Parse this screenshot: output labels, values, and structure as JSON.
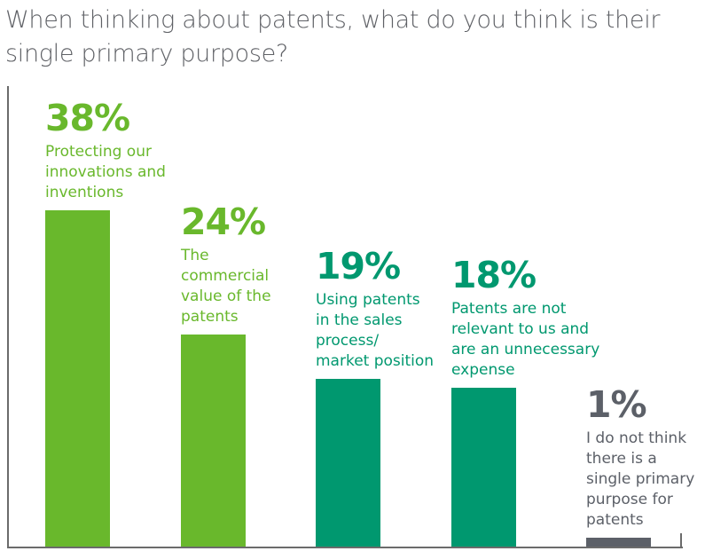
{
  "chart_data": {
    "type": "bar",
    "title": "When thinking about patents, what do you think is their single primary purpose?",
    "xlabel": "",
    "ylabel": "",
    "ylim": [
      0,
      40
    ],
    "grid": false,
    "categories": [
      "Protecting our innovations and inventions",
      "The commercial value of the patents",
      "Using patents in the sales process/ market position",
      "Patents are not relevant to us and are an unnecessary expense",
      "I do not think there is a single primary purpose for patents"
    ],
    "values": [
      38,
      24,
      19,
      18,
      1
    ],
    "value_labels": [
      "38%",
      "24%",
      "19%",
      "18%",
      "1%"
    ],
    "caption_lines": [
      [
        "Protecting our",
        "innovations and",
        "inventions"
      ],
      [
        "The",
        "commercial",
        "value of the",
        "patents"
      ],
      [
        "Using patents",
        "in the sales",
        "process/",
        "market position"
      ],
      [
        "Patents are not",
        "relevant to us and",
        "are an unnecessary",
        "expense"
      ],
      [
        "I do not think",
        "there is a",
        "single primary",
        "purpose for",
        "patents"
      ]
    ],
    "colors": [
      "#69b82c",
      "#69b82c",
      "#00986f",
      "#00986f",
      "#5c6068"
    ]
  }
}
